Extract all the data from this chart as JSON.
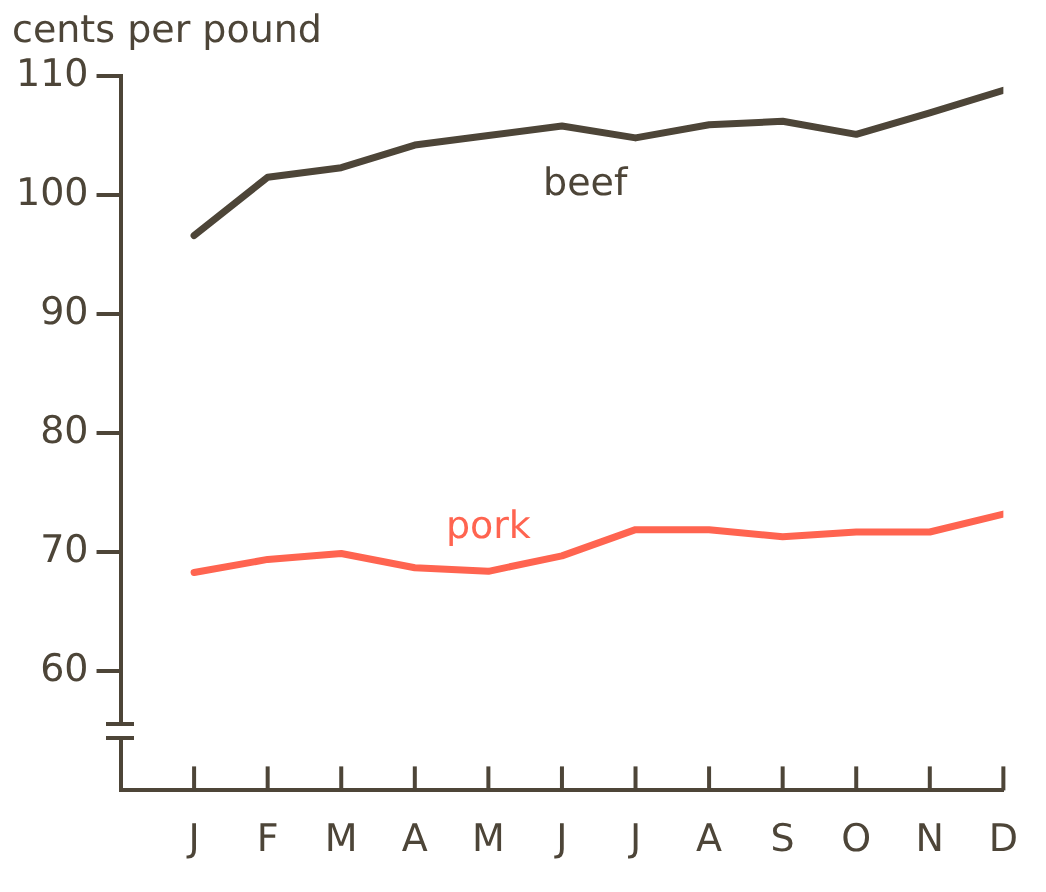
{
  "chart_data": {
    "type": "line",
    "ylabel": "cents per pound",
    "categories": [
      "J",
      "F",
      "M",
      "A",
      "M",
      "J",
      "J",
      "A",
      "S",
      "O",
      "N",
      "D"
    ],
    "series": [
      {
        "name": "beef",
        "color": "#4d4538",
        "values": [
          96.6,
          101.5,
          102.3,
          104.2,
          105.0,
          105.8,
          104.8,
          105.9,
          106.2,
          105.1,
          106.9,
          108.8
        ]
      },
      {
        "name": "pork",
        "color": "#ff6450",
        "values": [
          68.3,
          69.4,
          69.9,
          68.7,
          68.4,
          69.7,
          71.9,
          71.9,
          71.3,
          71.7,
          71.7,
          73.2
        ]
      }
    ],
    "ylim": [
      50,
      110
    ],
    "yticks": [
      60,
      70,
      80,
      90,
      100,
      110
    ],
    "grid": false,
    "legend": false,
    "marker": "none",
    "line_style": "solid"
  }
}
